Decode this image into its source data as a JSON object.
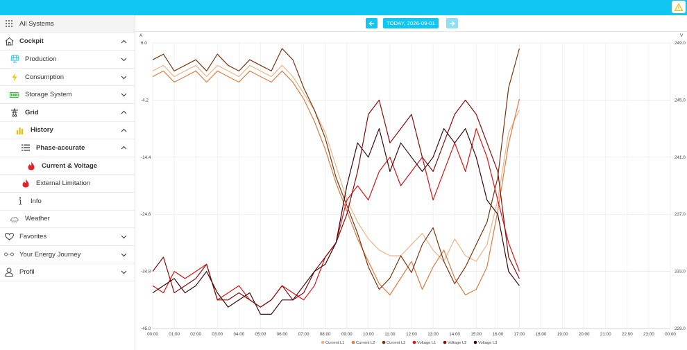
{
  "sidebar": {
    "items": [
      {
        "label": "All Systems",
        "icon": "grid-dots-icon"
      },
      {
        "label": "Cockpit",
        "icon": "home-icon"
      },
      {
        "label": "Production",
        "icon": "solar-panel-icon"
      },
      {
        "label": "Consumption",
        "icon": "lightning-icon"
      },
      {
        "label": "Storage System",
        "icon": "battery-icon"
      },
      {
        "label": "Grid",
        "icon": "power-pylon-icon"
      },
      {
        "label": "History",
        "icon": "bar-chart-icon"
      },
      {
        "label": "Phase-accurate",
        "icon": "list-icon"
      },
      {
        "label": "Current & Voltage",
        "icon": "flame-icon"
      },
      {
        "label": "External Limitation",
        "icon": "flame-icon"
      },
      {
        "label": "Info",
        "icon": "info-icon"
      },
      {
        "label": "Weather",
        "icon": "weather-icon"
      },
      {
        "label": "Favorites",
        "icon": "heart-icon"
      },
      {
        "label": "Your Energy Journey",
        "icon": "journey-icon"
      },
      {
        "label": "Profil",
        "icon": "user-icon"
      }
    ]
  },
  "datebar": {
    "date_label": "TODAY, 2026-09-01"
  },
  "colors": {
    "accent": "#12c6f2",
    "warning": "#f5b800"
  },
  "chart_data": {
    "type": "line",
    "left_axis": {
      "unit": "A",
      "ticks": [
        6.0,
        -4.2,
        -14.4,
        -24.6,
        -34.8,
        -45.0
      ],
      "range": [
        -45.0,
        6.0
      ]
    },
    "right_axis": {
      "unit": "V",
      "ticks": [
        249.0,
        245.0,
        241.0,
        237.0,
        233.0,
        229.0
      ],
      "range": [
        229.0,
        249.0
      ]
    },
    "x_ticks": [
      "00:00",
      "01:00",
      "02:00",
      "03:00",
      "04:00",
      "05:00",
      "06:00",
      "07:00",
      "08:00",
      "09:00",
      "10:00",
      "11:00",
      "12:00",
      "13:00",
      "14:00",
      "15:00",
      "16:00",
      "17:00",
      "18:00",
      "19:00",
      "20:00",
      "21:00",
      "22:00",
      "23:00",
      "00:00"
    ],
    "x_range_hours": [
      0,
      24
    ],
    "grid": true,
    "legend_position": "bottom-center",
    "series": [
      {
        "name": "Current L1",
        "axis": "left",
        "color": "#f0b48a",
        "x": [
          0,
          0.5,
          1,
          1.5,
          2,
          2.5,
          3,
          3.5,
          4,
          4.5,
          5,
          5.5,
          6,
          6.5,
          7,
          7.5,
          8,
          8.5,
          9,
          9.5,
          10,
          10.5,
          11,
          11.5,
          12,
          12.5,
          13,
          13.5,
          14,
          14.5,
          15,
          15.5,
          16,
          16.5,
          17
        ],
        "y": [
          1,
          2,
          0,
          1,
          2,
          0,
          2,
          1,
          0,
          2,
          1,
          0,
          2,
          0,
          -3,
          -6,
          -10,
          -16,
          -22,
          -26,
          -29,
          -31,
          -32,
          -32,
          -30,
          -28,
          -31,
          -33,
          -29,
          -32,
          -33,
          -30,
          -22,
          -10,
          -6
        ]
      },
      {
        "name": "Current L2",
        "axis": "left",
        "color": "#e07a40",
        "x": [
          0,
          0.5,
          1,
          1.5,
          2,
          2.5,
          3,
          3.5,
          4,
          4.5,
          5,
          5.5,
          6,
          6.5,
          7,
          7.5,
          8,
          8.5,
          9,
          9.5,
          10,
          10.5,
          11,
          11.5,
          12,
          12.5,
          13,
          13.5,
          14,
          14.5,
          15,
          15.5,
          16,
          16.5,
          17
        ],
        "y": [
          0,
          1,
          -1,
          0,
          1,
          -1,
          1,
          0,
          -1,
          1,
          0,
          -1,
          1,
          -1,
          -4,
          -8,
          -13,
          -19,
          -24,
          -29,
          -33,
          -37,
          -39,
          -36,
          -33,
          -38,
          -34,
          -31,
          -36,
          -39,
          -38,
          -34,
          -24,
          -12,
          -4
        ]
      },
      {
        "name": "Current L3",
        "axis": "left",
        "color": "#7a3410",
        "x": [
          0,
          0.5,
          1,
          1.5,
          2,
          2.5,
          3,
          3.5,
          4,
          4.5,
          5,
          5.5,
          6,
          6.5,
          7,
          7.5,
          8,
          8.5,
          9,
          9.5,
          10,
          10.5,
          11,
          11.5,
          12,
          12.5,
          13,
          13.5,
          14,
          14.5,
          15,
          15.5,
          16,
          16.5,
          17
        ],
        "y": [
          3,
          4,
          1,
          2,
          3,
          1,
          4,
          2,
          1,
          3,
          2,
          1,
          5,
          3,
          -2,
          -6,
          -11,
          -18,
          -23,
          -28,
          -34,
          -38,
          -36,
          -32,
          -35,
          -30,
          -27,
          -33,
          -37,
          -34,
          -30,
          -26,
          -18,
          -2,
          5
        ]
      },
      {
        "name": "Voltage L1",
        "axis": "right",
        "color": "#e01010",
        "x": [
          0,
          0.5,
          1,
          1.5,
          2,
          2.5,
          3,
          3.5,
          4,
          4.5,
          5,
          5.5,
          6,
          6.5,
          7,
          7.5,
          8,
          8.5,
          9,
          9.5,
          10,
          10.5,
          11,
          11.5,
          12,
          12.5,
          13,
          13.5,
          14,
          14.5,
          15,
          15.5,
          16,
          16.5,
          17
        ],
        "y": [
          232,
          231.5,
          233,
          232.5,
          233,
          233.5,
          231,
          231.5,
          232,
          231,
          230.5,
          231,
          232,
          231.5,
          231,
          232,
          234,
          235,
          238,
          239,
          238,
          240,
          241,
          239,
          240,
          241,
          238,
          240,
          242,
          240,
          243,
          241,
          238,
          235,
          233
        ]
      },
      {
        "name": "Voltage L2",
        "axis": "right",
        "color": "#8a0a0a",
        "x": [
          0,
          0.5,
          1,
          1.5,
          2,
          2.5,
          3,
          3.5,
          4,
          4.5,
          5,
          5.5,
          6,
          6.5,
          7,
          7.5,
          8,
          8.5,
          9,
          9.5,
          10,
          10.5,
          11,
          11.5,
          12,
          12.5,
          13,
          13.5,
          14,
          14.5,
          15,
          15.5,
          16,
          16.5,
          17
        ],
        "y": [
          233,
          234,
          231.5,
          232,
          232.5,
          233.5,
          231,
          231,
          231.5,
          231,
          230.5,
          231,
          232,
          231,
          231.5,
          233,
          234,
          235,
          237,
          240,
          244,
          245,
          242,
          243,
          244,
          241,
          240,
          242,
          244,
          245,
          244,
          242,
          240,
          234,
          232.5
        ]
      },
      {
        "name": "Voltage L3",
        "axis": "right",
        "color": "#3a0808",
        "x": [
          0,
          0.5,
          1,
          1.5,
          2,
          2.5,
          3,
          3.5,
          4,
          4.5,
          5,
          5.5,
          6,
          6.5,
          7,
          7.5,
          8,
          8.5,
          9,
          9.5,
          10,
          10.5,
          11,
          11.5,
          12,
          12.5,
          13,
          13.5,
          14,
          14.5,
          15,
          15.5,
          16,
          16.5,
          17
        ],
        "y": [
          231.5,
          232,
          232.5,
          231.5,
          232,
          233,
          231.5,
          230.5,
          231,
          231.5,
          230,
          230,
          231,
          231,
          232,
          233,
          233.5,
          235,
          239,
          242,
          241,
          243,
          240,
          242,
          241,
          240,
          241,
          243,
          242,
          243,
          241,
          238,
          237,
          233,
          232
        ]
      }
    ]
  }
}
